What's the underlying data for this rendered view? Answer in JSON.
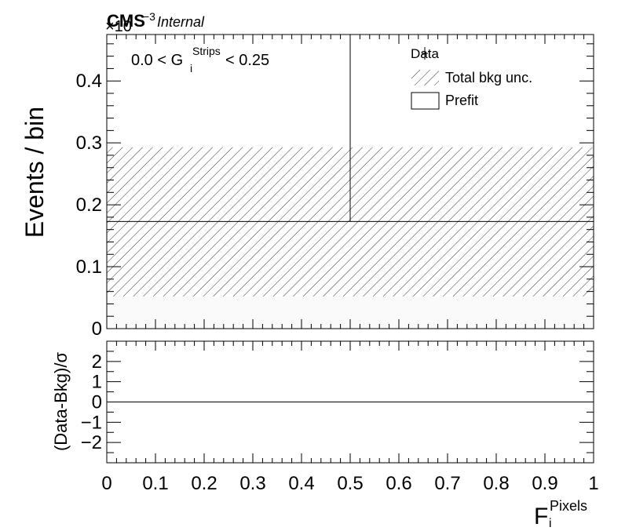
{
  "header": {
    "experiment": "CMS",
    "status": "Internal",
    "exponent_base": "×10",
    "exponent_power": "−3"
  },
  "chart_data": [
    {
      "type": "bar",
      "panel": "main",
      "ylabel": "Events / bin",
      "ylim": [
        0,
        0.475
      ],
      "yticks": [
        "0",
        "0.1",
        "0.2",
        "0.3",
        "0.4"
      ],
      "ytick_values": [
        0,
        0.1,
        0.2,
        0.3,
        0.4
      ],
      "xlim": [
        0,
        1
      ],
      "bin_edges": [
        0,
        0.5,
        1
      ],
      "prefit_values": [
        0.173,
        0.173
      ],
      "unc_low": [
        0.052,
        0.052
      ],
      "unc_high": [
        0.293,
        0.293
      ],
      "data_point": {
        "x": 0.5,
        "y_low": 0.173,
        "y_high": 0.475
      },
      "selection": {
        "prefix": "0.0 < G",
        "sub": "i",
        "sup": "Strips",
        "suffix": " < 0.25"
      },
      "legend": {
        "position": "top-right",
        "entries": [
          {
            "label": "Data",
            "style": "marker"
          },
          {
            "label": "Total bkg unc.",
            "style": "hatch"
          },
          {
            "label": "Prefit",
            "style": "box"
          }
        ]
      }
    },
    {
      "type": "line",
      "panel": "ratio",
      "ylabel": "(Data-Bkg)/σ",
      "ylim": [
        -3,
        3
      ],
      "yticks": [
        "−2",
        "−1",
        "0",
        "1",
        "2"
      ],
      "ytick_values": [
        -2,
        -1,
        0,
        1,
        2
      ],
      "xlim": [
        0,
        1
      ],
      "xticks": [
        "0",
        "0.1",
        "0.2",
        "0.3",
        "0.4",
        "0.5",
        "0.6",
        "0.7",
        "0.8",
        "0.9",
        "1"
      ],
      "xtick_values": [
        0,
        0.1,
        0.2,
        0.3,
        0.4,
        0.5,
        0.6,
        0.7,
        0.8,
        0.9,
        1
      ],
      "reference_line": 0,
      "xlabel": {
        "main": "F",
        "sub": "i",
        "sup": "Pixels"
      }
    }
  ]
}
